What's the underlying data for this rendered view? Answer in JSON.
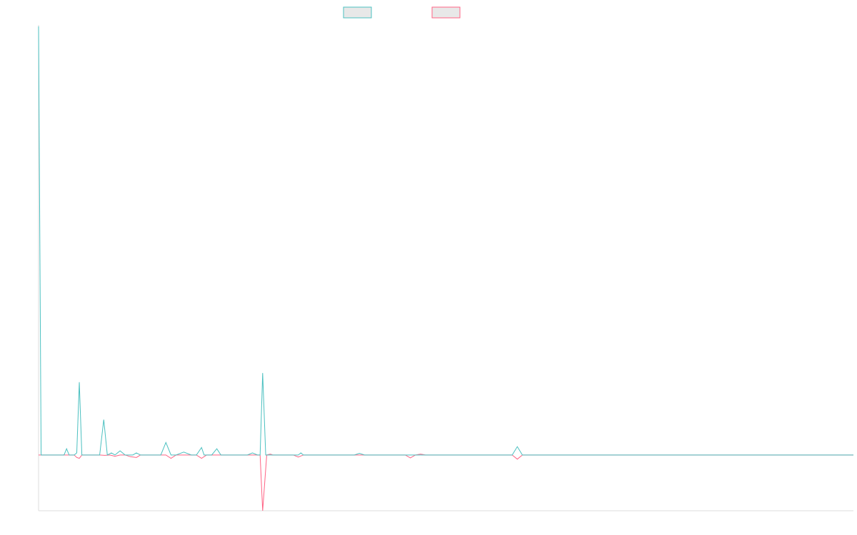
{
  "chart_data": {
    "type": "line",
    "title": "",
    "xlabel": "",
    "ylabel": "",
    "legend_position": "top-center",
    "grid": false,
    "x_range": [
      0,
      160
    ],
    "y_range": [
      -1.34,
      10.3
    ],
    "series": [
      {
        "color": "#4BC0C0",
        "points": [
          [
            0,
            10.3
          ],
          [
            0.5,
            0
          ],
          [
            5,
            0
          ],
          [
            5.5,
            0.15
          ],
          [
            6,
            0
          ],
          [
            7,
            0
          ],
          [
            7.5,
            0.05
          ],
          [
            8,
            1.75
          ],
          [
            8.5,
            0
          ],
          [
            12,
            0
          ],
          [
            12.8,
            0.85
          ],
          [
            13.5,
            0
          ],
          [
            14.3,
            0.05
          ],
          [
            15,
            0
          ],
          [
            16,
            0.1
          ],
          [
            17,
            0
          ],
          [
            18.5,
            0
          ],
          [
            19.2,
            0.05
          ],
          [
            20,
            0
          ],
          [
            24,
            0
          ],
          [
            25,
            0.3
          ],
          [
            26,
            0
          ],
          [
            27,
            0
          ],
          [
            28.5,
            0.07
          ],
          [
            30,
            0
          ],
          [
            31,
            0
          ],
          [
            32,
            0.18
          ],
          [
            32.5,
            0
          ],
          [
            34,
            0
          ],
          [
            35,
            0.15
          ],
          [
            35.8,
            0
          ],
          [
            40,
            0
          ],
          [
            41,
            0
          ],
          [
            42,
            0.05
          ],
          [
            43,
            0
          ],
          [
            43.5,
            0
          ],
          [
            44,
            1.97
          ],
          [
            44.6,
            0
          ],
          [
            46,
            0
          ],
          [
            51,
            0
          ],
          [
            51.5,
            0.05
          ],
          [
            52,
            0
          ],
          [
            62,
            0
          ],
          [
            63,
            0.04
          ],
          [
            64,
            0
          ],
          [
            72,
            0
          ],
          [
            73,
            0
          ],
          [
            75,
            0
          ],
          [
            88,
            0
          ],
          [
            93,
            0
          ],
          [
            94,
            0.2
          ],
          [
            95,
            0
          ],
          [
            160,
            0
          ]
        ]
      },
      {
        "color": "#FF6384",
        "points": [
          [
            0,
            0
          ],
          [
            7,
            0
          ],
          [
            7.5,
            -0.06
          ],
          [
            8,
            -0.08
          ],
          [
            8.5,
            0
          ],
          [
            12,
            0
          ],
          [
            13,
            -0.01
          ],
          [
            14,
            0
          ],
          [
            15,
            -0.03
          ],
          [
            16,
            0
          ],
          [
            17,
            0
          ],
          [
            18,
            -0.04
          ],
          [
            19.2,
            -0.06
          ],
          [
            20,
            0
          ],
          [
            25,
            0
          ],
          [
            26,
            -0.08
          ],
          [
            27,
            0
          ],
          [
            31,
            0
          ],
          [
            32,
            -0.08
          ],
          [
            33,
            0
          ],
          [
            43.5,
            0
          ],
          [
            44,
            -1.34
          ],
          [
            44.8,
            0
          ],
          [
            45.5,
            0.02
          ],
          [
            46,
            0
          ],
          [
            50,
            0
          ],
          [
            51,
            -0.05
          ],
          [
            52,
            0
          ],
          [
            72,
            0
          ],
          [
            73,
            -0.07
          ],
          [
            74,
            0
          ],
          [
            75,
            0.02
          ],
          [
            76,
            0
          ],
          [
            93,
            0
          ],
          [
            94,
            -0.1
          ],
          [
            95,
            0
          ],
          [
            160,
            0
          ]
        ]
      }
    ]
  }
}
